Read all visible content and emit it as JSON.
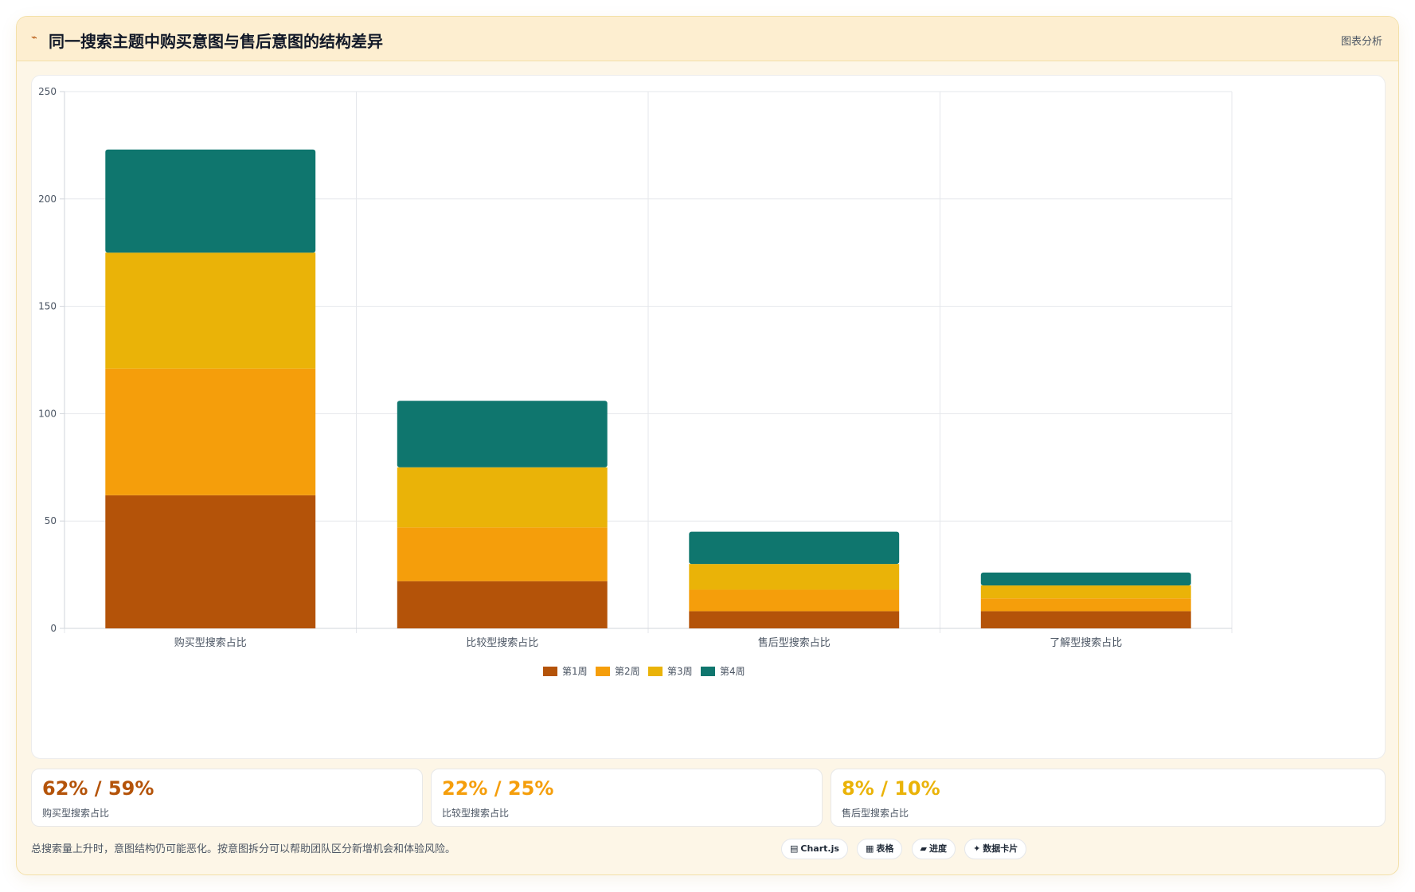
{
  "header": {
    "icon": "trend-icon",
    "title": "同一搜索主题中购买意图与售后意图的结构差异",
    "tag": "图表分析"
  },
  "chart_data": {
    "type": "bar",
    "stacked": true,
    "categories": [
      "购买型搜索占比",
      "比较型搜索占比",
      "售后型搜索占比",
      "了解型搜索占比"
    ],
    "series": [
      {
        "name": "第1周",
        "color": "#b45309",
        "values": [
          62,
          22,
          8,
          8
        ]
      },
      {
        "name": "第2周",
        "color": "#f59e0b",
        "values": [
          59,
          25,
          10,
          6
        ]
      },
      {
        "name": "第3周",
        "color": "#eab308",
        "values": [
          54,
          28,
          12,
          6
        ]
      },
      {
        "name": "第4周",
        "color": "#0f766e",
        "values": [
          48,
          31,
          15,
          6
        ]
      }
    ],
    "ylim": [
      0,
      250
    ],
    "yticks": [
      0,
      50,
      100,
      150,
      200,
      250
    ],
    "grid": true,
    "legend": "bottom"
  },
  "stats": [
    {
      "value": "62% / 59%",
      "label": "购买型搜索占比",
      "color": "#b45309"
    },
    {
      "value": "22% / 25%",
      "label": "比较型搜索占比",
      "color": "#f59e0b"
    },
    {
      "value": "8% / 10%",
      "label": "售后型搜索占比",
      "color": "#eab308"
    }
  ],
  "footnote": "总搜索量上升时，意图结构仍可能恶化。按意图拆分可以帮助团队区分新增机会和体验风险。",
  "pills": [
    {
      "icon": "▤",
      "label": "Chart.js"
    },
    {
      "icon": "▦",
      "label": "表格"
    },
    {
      "icon": "▰",
      "label": "进度"
    },
    {
      "icon": "✦",
      "label": "数据卡片"
    }
  ]
}
